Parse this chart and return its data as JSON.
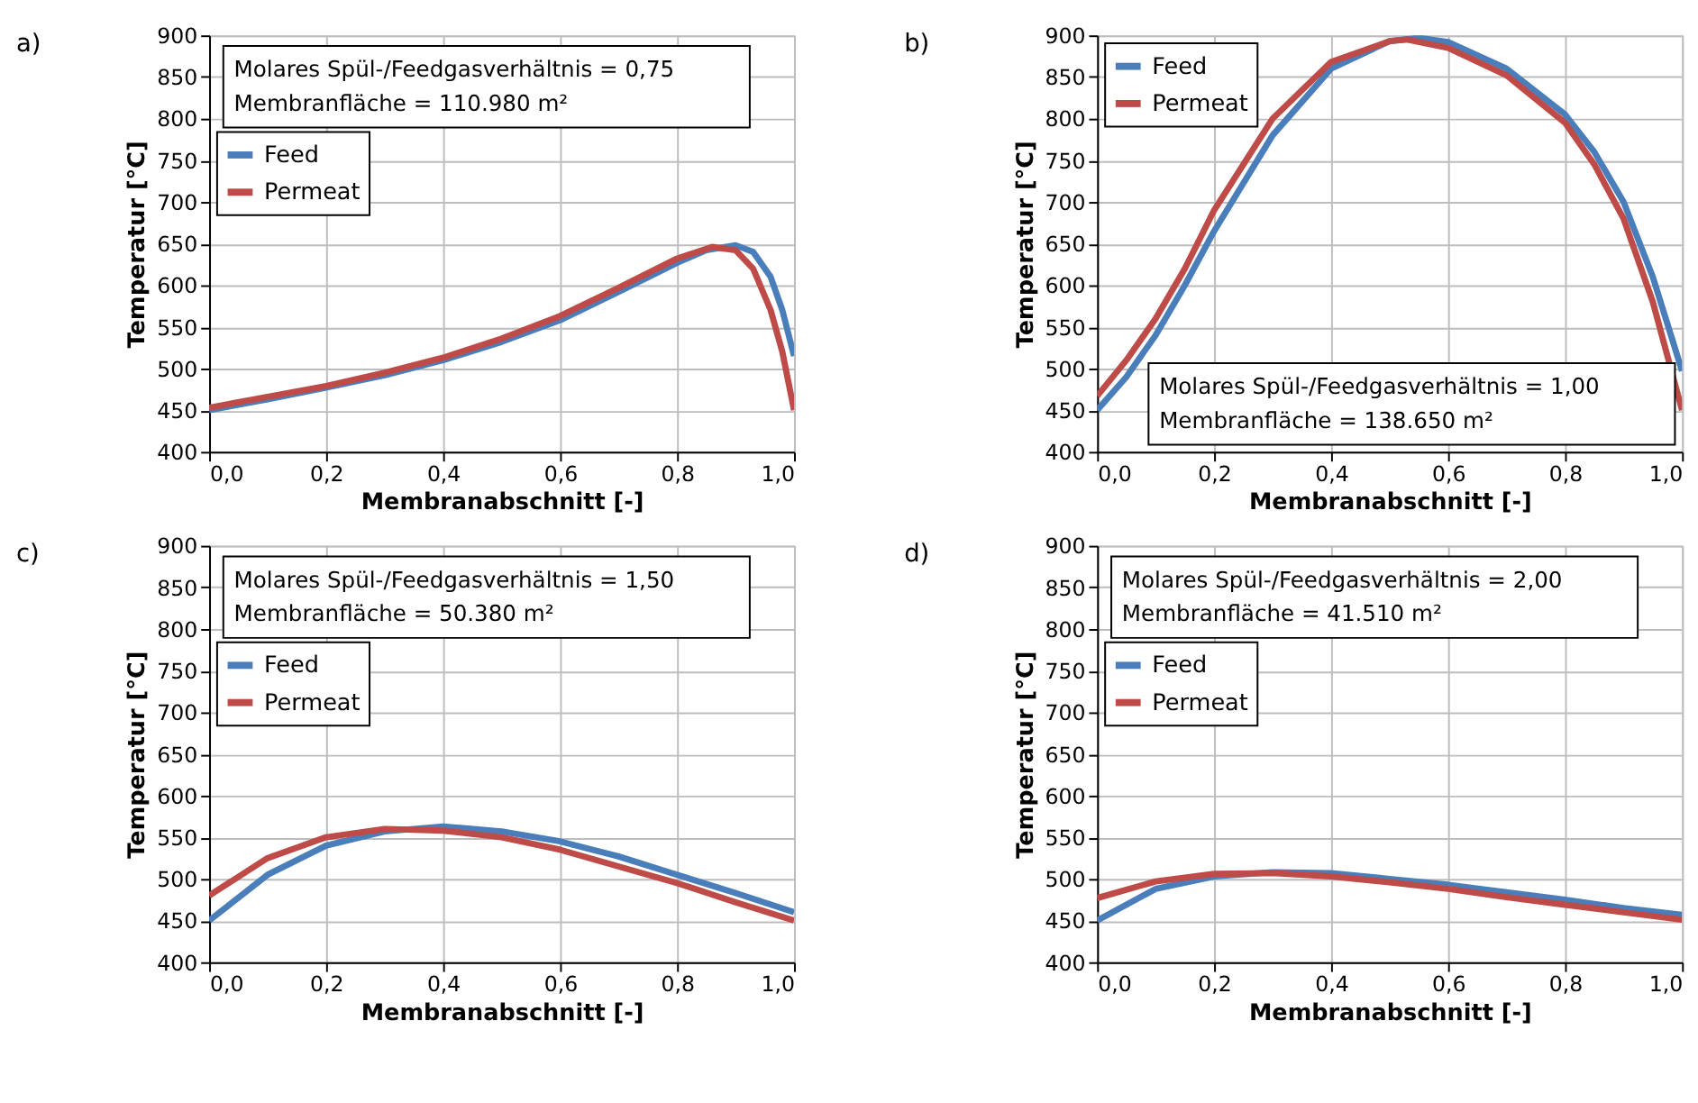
{
  "chart_data": [
    {
      "type": "line",
      "title": "a)",
      "xlabel": "Membranabschnitt  [-]",
      "ylabel": "Temperatur  [°C]",
      "xlim": [
        0,
        1
      ],
      "ylim": [
        400,
        900
      ],
      "xticks": [
        {
          "value": 0,
          "label": "0,0"
        },
        {
          "value": 0.2,
          "label": "0,2"
        },
        {
          "value": 0.4,
          "label": "0,4"
        },
        {
          "value": 0.6,
          "label": "0,6"
        },
        {
          "value": 0.8,
          "label": "0,8"
        },
        {
          "value": 1,
          "label": "1,0"
        }
      ],
      "yticks": [
        400,
        450,
        500,
        550,
        600,
        650,
        700,
        750,
        800,
        850,
        900
      ],
      "grid": true,
      "legend": "top left",
      "annotations": [
        "Molares Spül-/Feedgasverhältnis = 0,75",
        "Membranfläche = 110.980 m²"
      ],
      "series": [
        {
          "name": "Feed",
          "color": "#4a7ebb",
          "x": [
            0,
            0.1,
            0.2,
            0.3,
            0.4,
            0.5,
            0.6,
            0.7,
            0.8,
            0.85,
            0.9,
            0.93,
            0.96,
            0.98,
            1.0
          ],
          "values": [
            450,
            463,
            477,
            492,
            510,
            532,
            558,
            592,
            627,
            642,
            648,
            640,
            610,
            570,
            515
          ]
        },
        {
          "name": "Permeat",
          "color": "#be4b48",
          "x": [
            0,
            0.1,
            0.2,
            0.3,
            0.4,
            0.5,
            0.6,
            0.7,
            0.8,
            0.86,
            0.9,
            0.93,
            0.96,
            0.98,
            1.0
          ],
          "values": [
            453,
            466,
            479,
            495,
            513,
            536,
            563,
            597,
            632,
            646,
            642,
            620,
            570,
            520,
            450
          ]
        }
      ]
    },
    {
      "type": "line",
      "title": "b)",
      "xlabel": "Membranabschnitt  [-]",
      "ylabel": "Temperatur  [°C]",
      "xlim": [
        0,
        1
      ],
      "ylim": [
        400,
        900
      ],
      "xticks": [
        {
          "value": 0,
          "label": "0,0"
        },
        {
          "value": 0.2,
          "label": "0,2"
        },
        {
          "value": 0.4,
          "label": "0,4"
        },
        {
          "value": 0.6,
          "label": "0,6"
        },
        {
          "value": 0.8,
          "label": "0,8"
        },
        {
          "value": 1,
          "label": "1,0"
        }
      ],
      "yticks": [
        400,
        450,
        500,
        550,
        600,
        650,
        700,
        750,
        800,
        850,
        900
      ],
      "grid": true,
      "legend": "top left",
      "annotations": [
        "Molares Spül-/Feedgasverhältnis = 1,00",
        "Membranfläche = 138.650 m²"
      ],
      "series": [
        {
          "name": "Feed",
          "color": "#4a7ebb",
          "x": [
            0,
            0.05,
            0.1,
            0.15,
            0.2,
            0.3,
            0.4,
            0.5,
            0.55,
            0.6,
            0.7,
            0.8,
            0.85,
            0.9,
            0.95,
            1.0
          ],
          "values": [
            450,
            490,
            540,
            600,
            665,
            780,
            860,
            893,
            897,
            892,
            860,
            805,
            760,
            700,
            610,
            497
          ]
        },
        {
          "name": "Permeat",
          "color": "#be4b48",
          "x": [
            0,
            0.05,
            0.1,
            0.15,
            0.2,
            0.3,
            0.4,
            0.5,
            0.53,
            0.6,
            0.7,
            0.8,
            0.85,
            0.9,
            0.95,
            1.0
          ],
          "values": [
            467,
            510,
            560,
            620,
            690,
            800,
            868,
            893,
            895,
            885,
            852,
            795,
            745,
            680,
            580,
            450
          ]
        }
      ]
    },
    {
      "type": "line",
      "title": "c)",
      "xlabel": "Membranabschnitt  [-]",
      "ylabel": "Temperatur  [°C]",
      "xlim": [
        0,
        1
      ],
      "ylim": [
        400,
        900
      ],
      "xticks": [
        {
          "value": 0,
          "label": "0,0"
        },
        {
          "value": 0.2,
          "label": "0,2"
        },
        {
          "value": 0.4,
          "label": "0,4"
        },
        {
          "value": 0.6,
          "label": "0,6"
        },
        {
          "value": 0.8,
          "label": "0,8"
        },
        {
          "value": 1,
          "label": "1,0"
        }
      ],
      "yticks": [
        400,
        450,
        500,
        550,
        600,
        650,
        700,
        750,
        800,
        850,
        900
      ],
      "grid": true,
      "legend": "top left",
      "annotations": [
        "Molares Spül-/Feedgasverhältnis = 1,50",
        "Membranfläche = 50.380 m²"
      ],
      "series": [
        {
          "name": "Feed",
          "color": "#4a7ebb",
          "x": [
            0,
            0.1,
            0.2,
            0.3,
            0.4,
            0.5,
            0.6,
            0.7,
            0.8,
            0.9,
            1.0
          ],
          "values": [
            450,
            505,
            540,
            557,
            563,
            557,
            545,
            527,
            505,
            483,
            460
          ]
        },
        {
          "name": "Permeat",
          "color": "#be4b48",
          "x": [
            0,
            0.1,
            0.2,
            0.3,
            0.4,
            0.5,
            0.6,
            0.7,
            0.8,
            0.9,
            1.0
          ],
          "values": [
            480,
            525,
            550,
            560,
            558,
            550,
            535,
            515,
            495,
            472,
            450
          ]
        }
      ]
    },
    {
      "type": "line",
      "title": "d)",
      "xlabel": "Membranabschnitt  [-]",
      "ylabel": "Temperatur  [°C]",
      "xlim": [
        0,
        1
      ],
      "ylim": [
        400,
        900
      ],
      "xticks": [
        {
          "value": 0,
          "label": "0,0"
        },
        {
          "value": 0.2,
          "label": "0,2"
        },
        {
          "value": 0.4,
          "label": "0,4"
        },
        {
          "value": 0.6,
          "label": "0,6"
        },
        {
          "value": 0.8,
          "label": "0,8"
        },
        {
          "value": 1,
          "label": "1,0"
        }
      ],
      "yticks": [
        400,
        450,
        500,
        550,
        600,
        650,
        700,
        750,
        800,
        850,
        900
      ],
      "grid": true,
      "legend": "top left",
      "annotations": [
        "Molares Spül-/Feedgasverhältnis = 2,00",
        "Membranfläche = 41.510 m²"
      ],
      "series": [
        {
          "name": "Feed",
          "color": "#4a7ebb",
          "x": [
            0,
            0.1,
            0.2,
            0.3,
            0.4,
            0.5,
            0.6,
            0.7,
            0.8,
            0.9,
            1.0
          ],
          "values": [
            450,
            488,
            503,
            508,
            507,
            500,
            493,
            484,
            475,
            465,
            457
          ]
        },
        {
          "name": "Permeat",
          "color": "#be4b48",
          "x": [
            0,
            0.1,
            0.2,
            0.3,
            0.4,
            0.5,
            0.6,
            0.7,
            0.8,
            0.9,
            1.0
          ],
          "values": [
            477,
            497,
            506,
            507,
            503,
            496,
            488,
            478,
            469,
            460,
            451
          ]
        }
      ]
    }
  ]
}
